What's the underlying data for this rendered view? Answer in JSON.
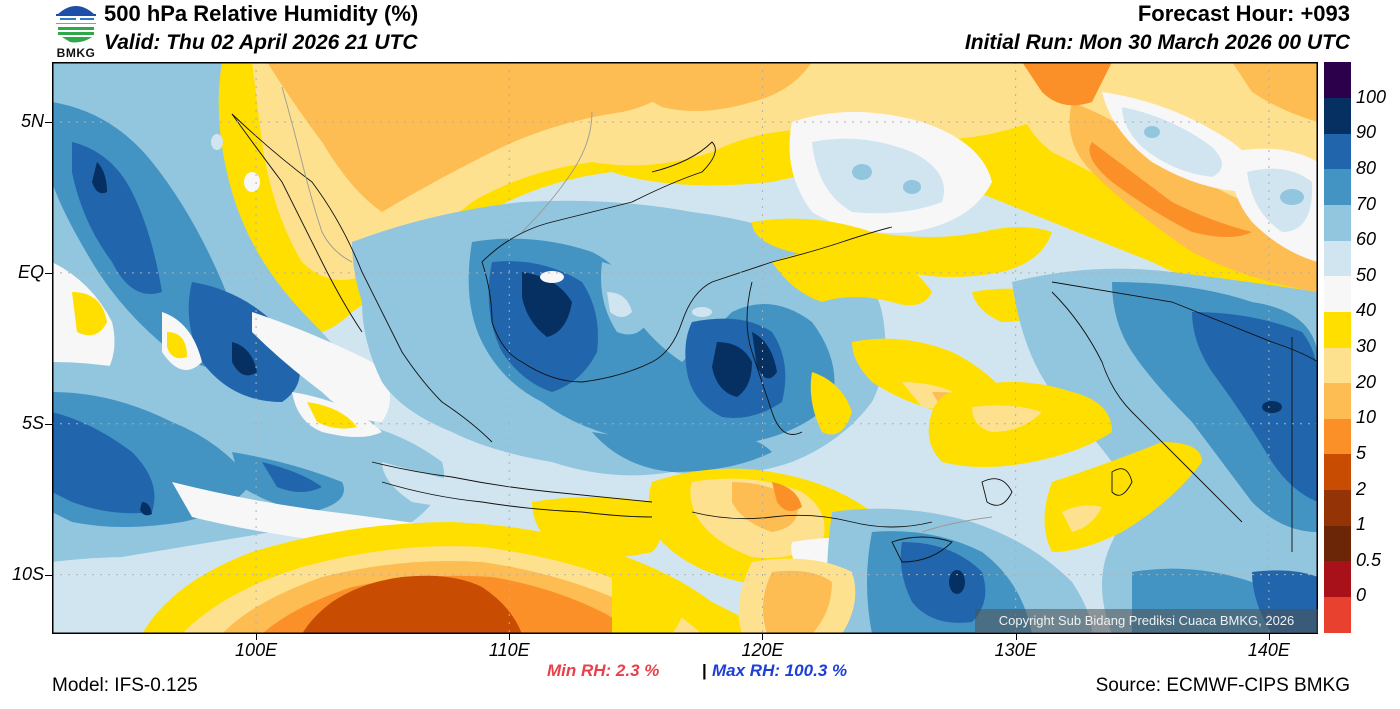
{
  "header": {
    "title": "500 hPa Relative Humidity (%)",
    "valid": "Valid: Thu 02 April 2026 21 UTC",
    "forecast_hour": "Forecast Hour: +093",
    "initial_run": "Initial Run: Mon 30 March 2026 00 UTC",
    "logo_text": "BMKG"
  },
  "map": {
    "lon_range": [
      91.94,
      141.94
    ],
    "lat_range": [
      -11.97,
      6.99
    ],
    "x_ticks": [
      {
        "lon": 100,
        "label": "100E"
      },
      {
        "lon": 110,
        "label": "110E"
      },
      {
        "lon": 120,
        "label": "120E"
      },
      {
        "lon": 130,
        "label": "130E"
      },
      {
        "lon": 140,
        "label": "140E"
      }
    ],
    "y_ticks": [
      {
        "lat": 5,
        "label": "5N"
      },
      {
        "lat": 0,
        "label": "EQ"
      },
      {
        "lat": -5,
        "label": "5S"
      },
      {
        "lat": -10,
        "label": "10S"
      }
    ],
    "gridlines": "dotted",
    "copyright": "Copyright Sub Bidang Prediksi Cuaca BMKG, 2026"
  },
  "colorbar": {
    "levels": [
      {
        "label": "",
        "color": "#e8412f"
      },
      {
        "label": "0",
        "color": "#a8101a"
      },
      {
        "label": "0.5",
        "color": "#6b2608"
      },
      {
        "label": "1",
        "color": "#943306"
      },
      {
        "label": "2",
        "color": "#c94c03"
      },
      {
        "label": "5",
        "color": "#fb9028"
      },
      {
        "label": "10",
        "color": "#fdbd52"
      },
      {
        "label": "20",
        "color": "#fee18f"
      },
      {
        "label": "30",
        "color": "#ffdf00"
      },
      {
        "label": "40",
        "color": "#f7f7f7"
      },
      {
        "label": "50",
        "color": "#d1e5f0"
      },
      {
        "label": "60",
        "color": "#92c5de"
      },
      {
        "label": "70",
        "color": "#4393c3"
      },
      {
        "label": "80",
        "color": "#2166ac"
      },
      {
        "label": "90",
        "color": "#053061"
      },
      {
        "label": "100",
        "color": "#2d004b"
      }
    ]
  },
  "footer": {
    "min_rh": "Min RH:   2.3 %",
    "separator": "|",
    "max_rh": "Max RH: 100.3 %",
    "model": "Model: IFS-0.125",
    "source": "Source: ECMWF-CIPS BMKG"
  }
}
